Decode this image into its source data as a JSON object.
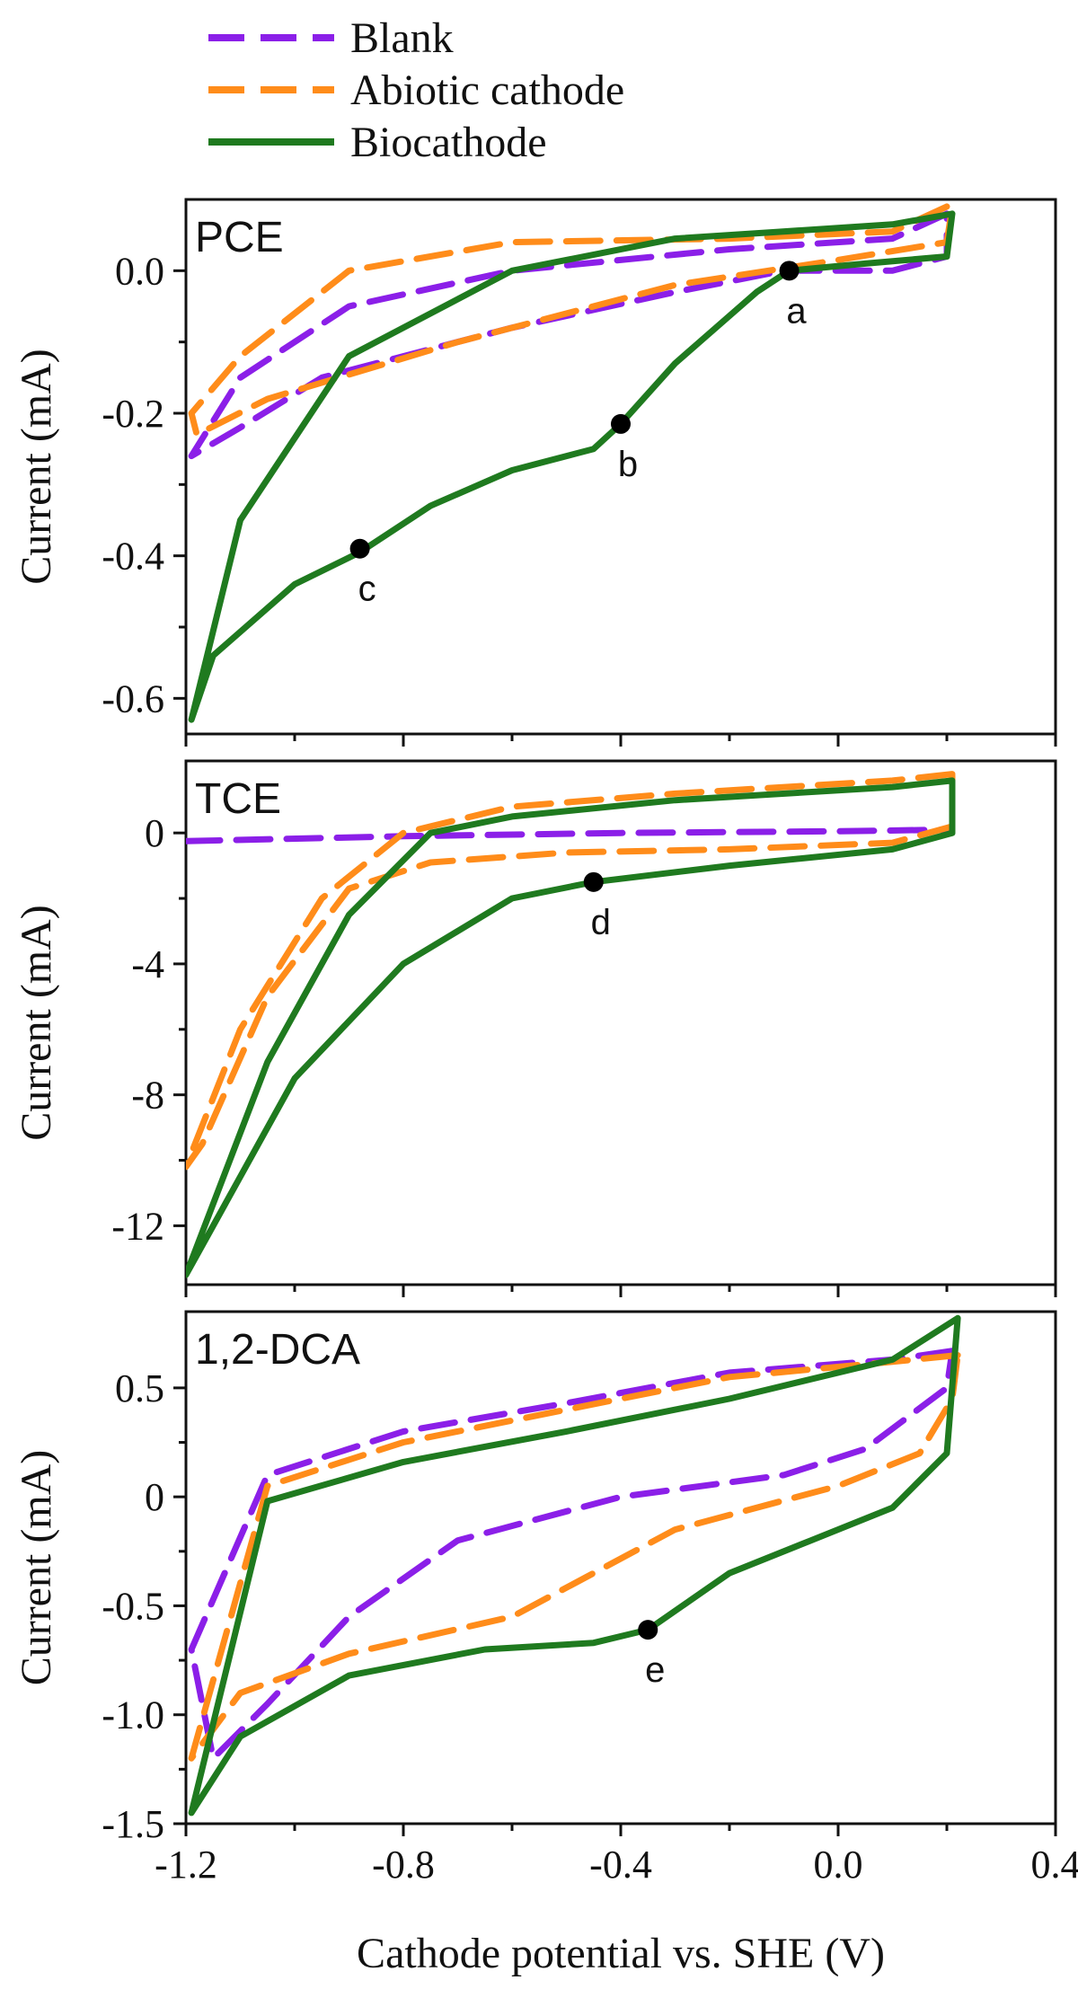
{
  "chart_data": {
    "type": "line",
    "xlabel": "Cathode potential vs. SHE (V)",
    "xlim": [
      -1.2,
      0.4
    ],
    "xticks": [
      "-1.2",
      "-0.8",
      "-0.4",
      "0.0",
      "0.4"
    ],
    "xtick_values": [
      -1.2,
      -0.8,
      -0.4,
      0.0,
      0.4
    ],
    "legend": [
      {
        "name": "Blank",
        "color": "#8B1FE8",
        "style": "dashed"
      },
      {
        "name": "Abiotic cathode",
        "color": "#FF8C1A",
        "style": "dashed"
      },
      {
        "name": "Biocathode",
        "color": "#1F7A1F",
        "style": "solid"
      }
    ],
    "panels": [
      {
        "title": "PCE",
        "ylabel": "Current (mA)",
        "ylim": [
          -0.65,
          0.1
        ],
        "yticks": [
          "0.0",
          "-0.2",
          "-0.4",
          "-0.6"
        ],
        "ytick_values": [
          0.0,
          -0.2,
          -0.4,
          -0.6
        ],
        "series": [
          {
            "name": "Blank",
            "points": [
              [
                0.2,
                0.08
              ],
              [
                0.1,
                0.045
              ],
              [
                -0.2,
                0.03
              ],
              [
                -0.6,
                0.0
              ],
              [
                -0.9,
                -0.05
              ],
              [
                -1.1,
                -0.15
              ],
              [
                -1.19,
                -0.26
              ],
              [
                -1.1,
                -0.22
              ],
              [
                -0.95,
                -0.15
              ],
              [
                -0.6,
                -0.08
              ],
              [
                -0.3,
                -0.03
              ],
              [
                -0.1,
                0.0
              ],
              [
                0.1,
                0.0
              ],
              [
                0.2,
                0.02
              ],
              [
                0.2,
                0.08
              ]
            ]
          },
          {
            "name": "Abiotic cathode",
            "points": [
              [
                0.2,
                0.09
              ],
              [
                0.1,
                0.055
              ],
              [
                -0.2,
                0.045
              ],
              [
                -0.6,
                0.04
              ],
              [
                -0.9,
                0.0
              ],
              [
                -1.1,
                -0.12
              ],
              [
                -1.19,
                -0.2
              ],
              [
                -1.18,
                -0.23
              ],
              [
                -1.05,
                -0.18
              ],
              [
                -0.7,
                -0.1
              ],
              [
                -0.3,
                -0.02
              ],
              [
                0.0,
                0.015
              ],
              [
                0.2,
                0.04
              ],
              [
                0.21,
                0.09
              ]
            ]
          },
          {
            "name": "Biocathode",
            "points": [
              [
                0.21,
                0.08
              ],
              [
                0.1,
                0.065
              ],
              [
                -0.3,
                0.045
              ],
              [
                -0.6,
                0.0
              ],
              [
                -0.9,
                -0.12
              ],
              [
                -1.1,
                -0.35
              ],
              [
                -1.19,
                -0.63
              ],
              [
                -1.15,
                -0.54
              ],
              [
                -1.0,
                -0.44
              ],
              [
                -0.88,
                -0.395
              ],
              [
                -0.75,
                -0.33
              ],
              [
                -0.6,
                -0.28
              ],
              [
                -0.45,
                -0.25
              ],
              [
                -0.4,
                -0.215
              ],
              [
                -0.3,
                -0.13
              ],
              [
                -0.15,
                -0.03
              ],
              [
                -0.09,
                0.0
              ],
              [
                0.05,
                0.01
              ],
              [
                0.2,
                0.02
              ],
              [
                0.21,
                0.08
              ]
            ]
          }
        ],
        "annotations": [
          {
            "label": "a",
            "x": -0.09,
            "y": 0.0
          },
          {
            "label": "b",
            "x": -0.4,
            "y": -0.215
          },
          {
            "label": "c",
            "x": -0.88,
            "y": -0.39
          }
        ]
      },
      {
        "title": "TCE",
        "ylabel": "Current (mA)",
        "ylim": [
          -13.8,
          2.2
        ],
        "yticks": [
          "0",
          "-4",
          "-8",
          "-12"
        ],
        "ytick_values": [
          0,
          -4,
          -8,
          -12
        ],
        "series": [
          {
            "name": "Blank",
            "points": [
              [
                -1.2,
                -0.25
              ],
              [
                -0.8,
                -0.1
              ],
              [
                -0.4,
                0.0
              ],
              [
                0.0,
                0.05
              ],
              [
                0.2,
                0.1
              ]
            ]
          },
          {
            "name": "Abiotic cathode",
            "points": [
              [
                0.21,
                1.8
              ],
              [
                0.1,
                1.6
              ],
              [
                -0.3,
                1.2
              ],
              [
                -0.6,
                0.8
              ],
              [
                -0.8,
                0.0
              ],
              [
                -0.95,
                -2.0
              ],
              [
                -1.1,
                -6.0
              ],
              [
                -1.2,
                -10.2
              ],
              [
                -1.17,
                -9.5
              ],
              [
                -1.05,
                -5.0
              ],
              [
                -0.9,
                -1.7
              ],
              [
                -0.75,
                -0.9
              ],
              [
                -0.5,
                -0.6
              ],
              [
                -0.2,
                -0.5
              ],
              [
                0.1,
                -0.3
              ],
              [
                0.21,
                0.2
              ],
              [
                0.21,
                1.8
              ]
            ]
          },
          {
            "name": "Biocathode",
            "points": [
              [
                0.21,
                1.6
              ],
              [
                0.1,
                1.4
              ],
              [
                -0.3,
                1.0
              ],
              [
                -0.6,
                0.5
              ],
              [
                -0.75,
                0.0
              ],
              [
                -0.9,
                -2.5
              ],
              [
                -1.05,
                -7.0
              ],
              [
                -1.2,
                -13.5
              ],
              [
                -1.15,
                -12.0
              ],
              [
                -1.0,
                -7.5
              ],
              [
                -0.8,
                -4.0
              ],
              [
                -0.6,
                -2.0
              ],
              [
                -0.45,
                -1.5
              ],
              [
                -0.2,
                -1.0
              ],
              [
                0.1,
                -0.5
              ],
              [
                0.21,
                0.0
              ],
              [
                0.21,
                1.6
              ]
            ]
          }
        ],
        "annotations": [
          {
            "label": "d",
            "x": -0.45,
            "y": -1.5
          }
        ]
      },
      {
        "title": "1,2-DCA",
        "ylabel": "Current (mA)",
        "ylim": [
          -1.5,
          0.85
        ],
        "yticks": [
          "0.5",
          "0",
          "-0.5",
          "-1.0",
          "-1.5"
        ],
        "ytick_values": [
          0.5,
          0.0,
          -0.5,
          -1.0,
          -1.5
        ],
        "series": [
          {
            "name": "Blank",
            "points": [
              [
                0.21,
                0.67
              ],
              [
                0.1,
                0.63
              ],
              [
                -0.2,
                0.57
              ],
              [
                -0.5,
                0.43
              ],
              [
                -0.8,
                0.3
              ],
              [
                -1.05,
                0.1
              ],
              [
                -1.19,
                -0.7
              ],
              [
                -1.15,
                -1.2
              ],
              [
                -1.05,
                -0.95
              ],
              [
                -0.9,
                -0.55
              ],
              [
                -0.7,
                -0.2
              ],
              [
                -0.4,
                0.0
              ],
              [
                -0.1,
                0.1
              ],
              [
                0.05,
                0.22
              ],
              [
                0.2,
                0.5
              ],
              [
                0.21,
                0.67
              ]
            ]
          },
          {
            "name": "Abiotic cathode",
            "points": [
              [
                0.22,
                0.65
              ],
              [
                0.1,
                0.62
              ],
              [
                -0.2,
                0.55
              ],
              [
                -0.5,
                0.4
              ],
              [
                -0.8,
                0.25
              ],
              [
                -1.05,
                0.05
              ],
              [
                -1.19,
                -1.2
              ],
              [
                -1.1,
                -0.9
              ],
              [
                -0.9,
                -0.72
              ],
              [
                -0.6,
                -0.55
              ],
              [
                -0.3,
                -0.15
              ],
              [
                0.0,
                0.05
              ],
              [
                0.15,
                0.2
              ],
              [
                0.21,
                0.45
              ],
              [
                0.22,
                0.65
              ]
            ]
          },
          {
            "name": "Biocathode",
            "points": [
              [
                0.22,
                0.82
              ],
              [
                0.1,
                0.63
              ],
              [
                -0.2,
                0.45
              ],
              [
                -0.5,
                0.3
              ],
              [
                -0.8,
                0.16
              ],
              [
                -1.05,
                -0.02
              ],
              [
                -1.19,
                -1.45
              ],
              [
                -1.1,
                -1.1
              ],
              [
                -0.9,
                -0.82
              ],
              [
                -0.65,
                -0.7
              ],
              [
                -0.45,
                -0.67
              ],
              [
                -0.35,
                -0.61
              ],
              [
                -0.2,
                -0.35
              ],
              [
                -0.05,
                -0.2
              ],
              [
                0.1,
                -0.05
              ],
              [
                0.2,
                0.2
              ],
              [
                0.22,
                0.82
              ]
            ]
          }
        ],
        "annotations": [
          {
            "label": "e",
            "x": -0.35,
            "y": -0.61
          }
        ]
      }
    ]
  },
  "colors": {
    "blank": "#8B1FE8",
    "abiotic": "#FF8C1A",
    "bio": "#1F7A1F"
  }
}
